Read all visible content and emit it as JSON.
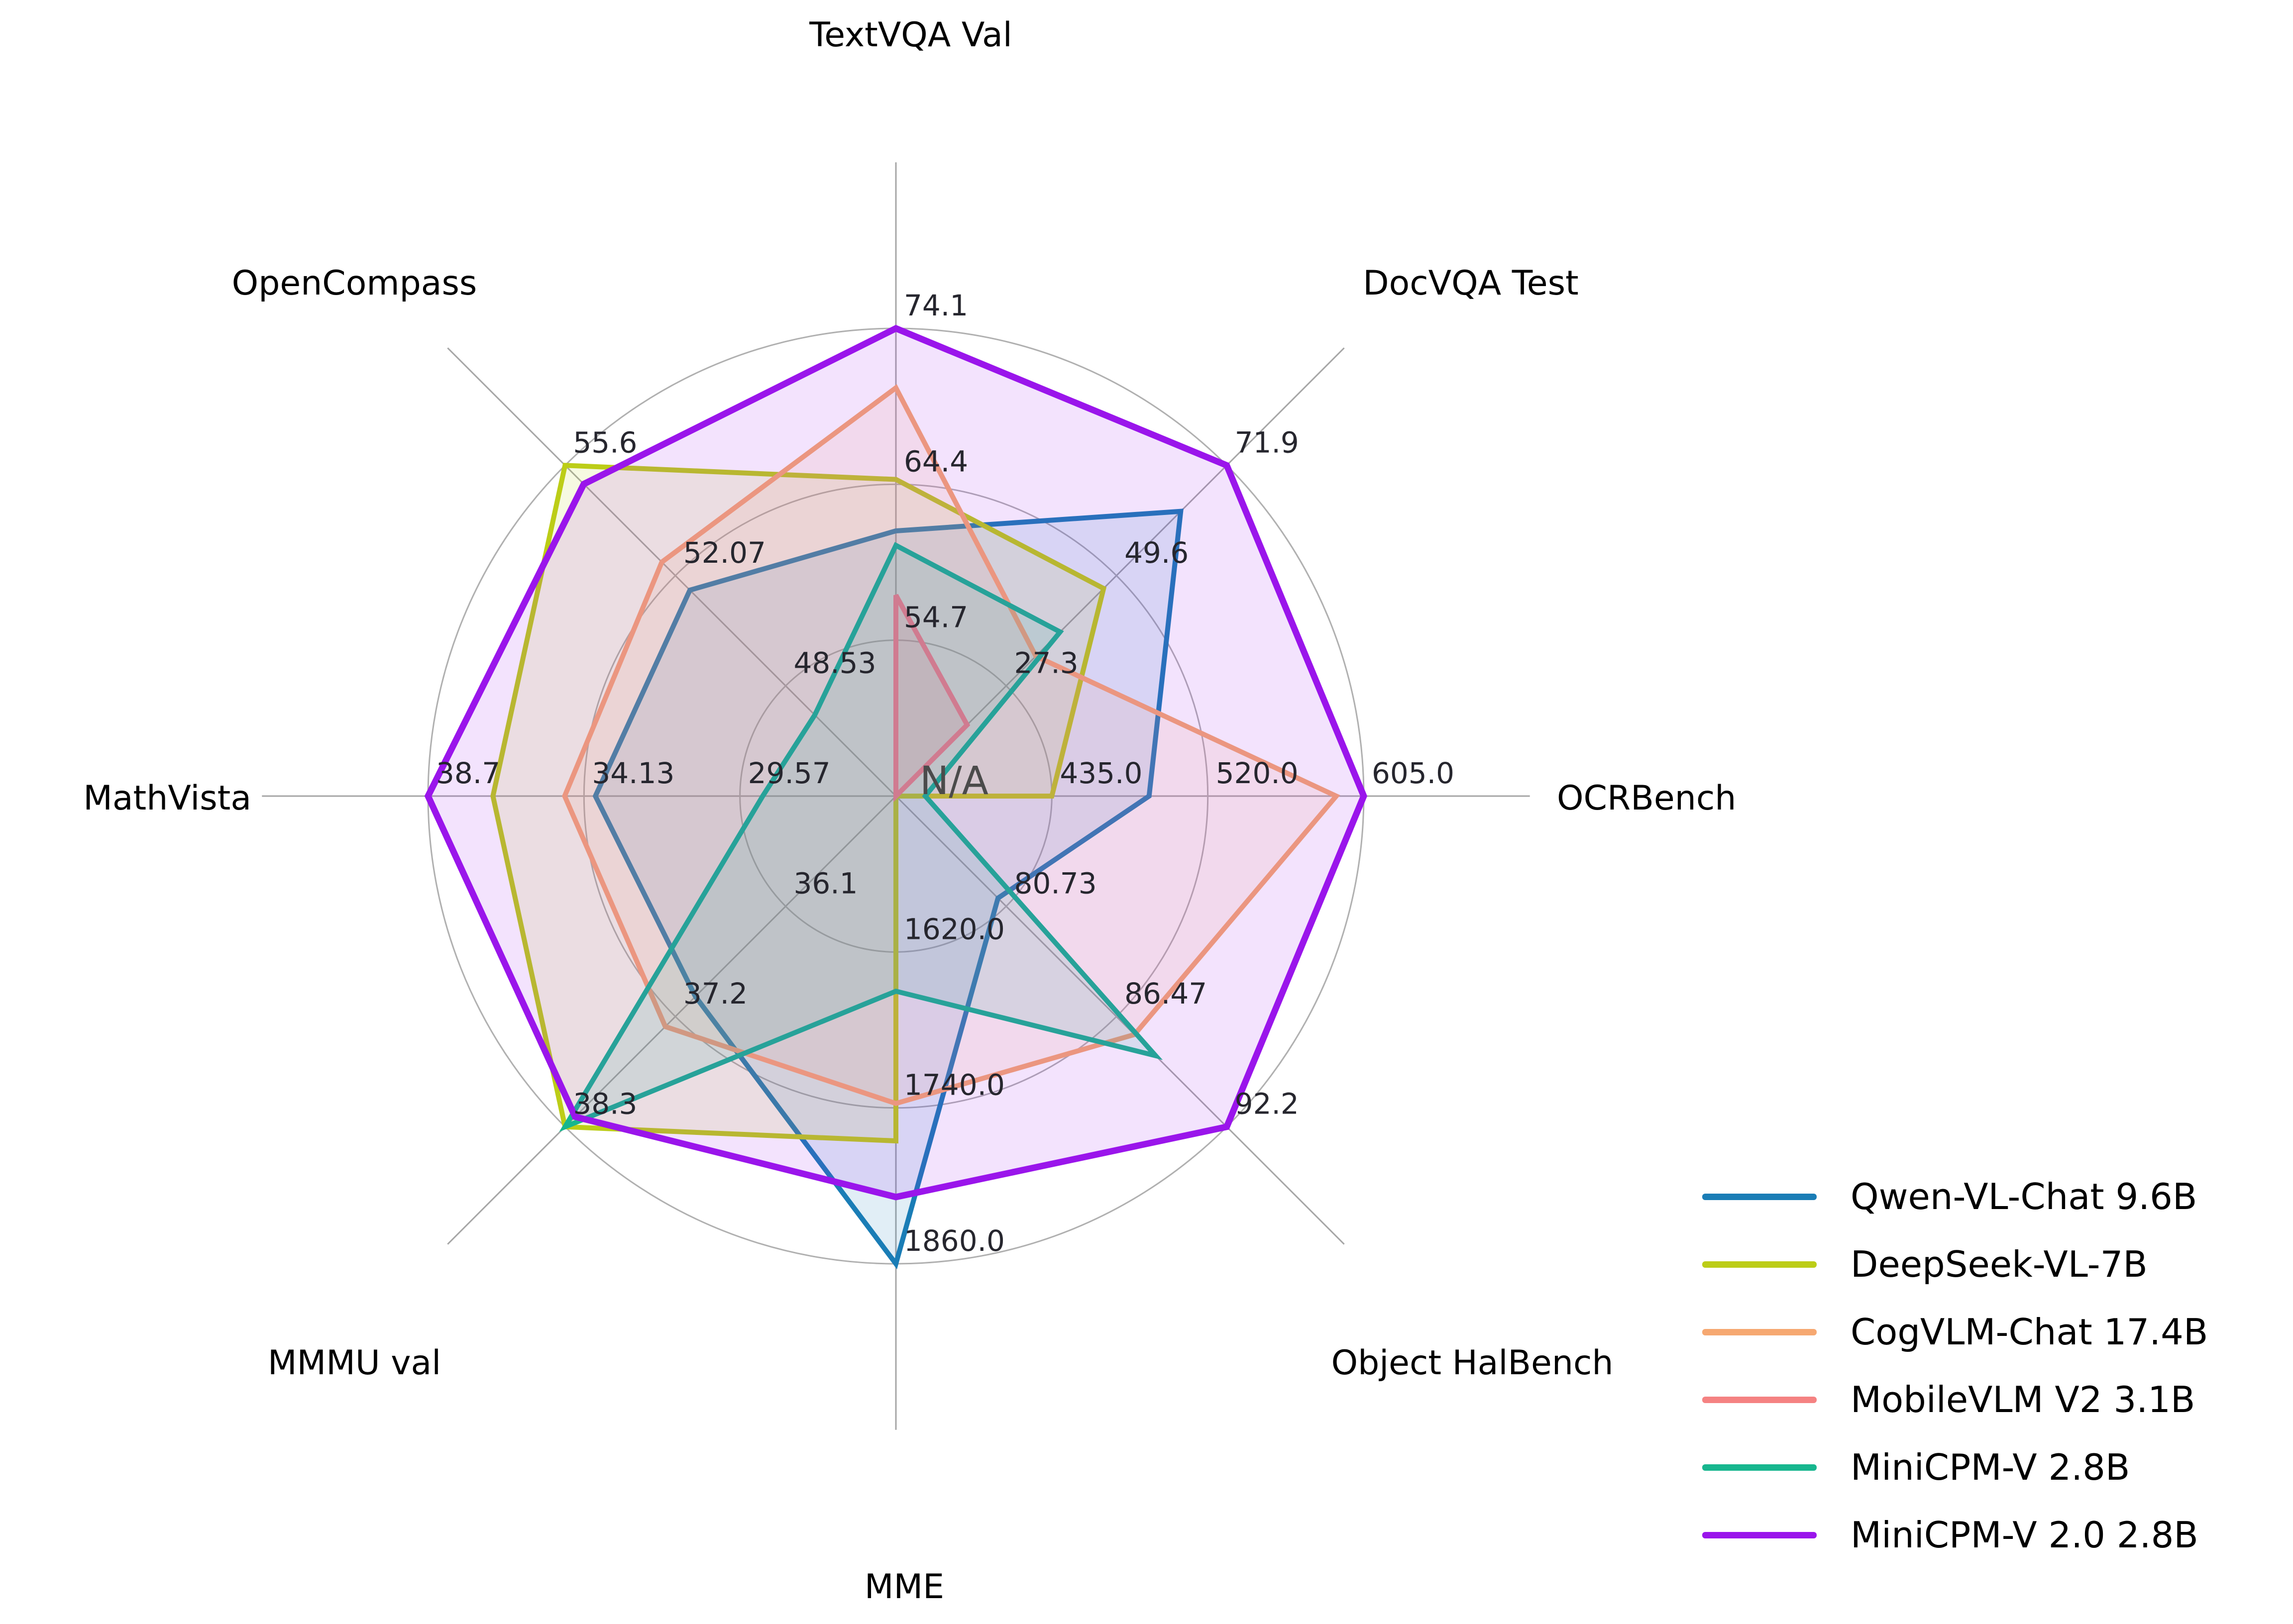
{
  "chart_data": {
    "type": "radar",
    "title": "",
    "grid": "circular, 3 rings at thirds, spokes extended past outer ring",
    "legend_position": "lower right, outside plot",
    "center_label": "N/A",
    "axes": [
      {
        "label": "TextVQA Val",
        "min": 45.0,
        "max": 74.1,
        "ticks": [
          "54.7",
          "64.4",
          "74.1"
        ]
      },
      {
        "label": "DocVQA Test",
        "min": 5.0,
        "max": 71.9,
        "ticks": [
          "27.3",
          "49.6",
          "71.9"
        ]
      },
      {
        "label": "OCRBench",
        "min": 350.0,
        "max": 605.0,
        "ticks": [
          "435.0",
          "520.0",
          "605.0"
        ]
      },
      {
        "label": "Object HalBench",
        "min": 74.99,
        "max": 92.2,
        "ticks": [
          "80.73",
          "86.47",
          "92.2"
        ]
      },
      {
        "label": "MME",
        "min": 1500.0,
        "max": 1860.0,
        "ticks": [
          "1620.0",
          "1740.0",
          "1860.0"
        ]
      },
      {
        "label": "MMMU val",
        "min": 35.0,
        "max": 38.3,
        "ticks": [
          "36.1",
          "37.2",
          "38.3"
        ]
      },
      {
        "label": "MathVista",
        "min": 25.0,
        "max": 38.7,
        "ticks": [
          "29.57",
          "34.13",
          "38.7"
        ]
      },
      {
        "label": "OpenCompass",
        "min": 45.0,
        "max": 55.6,
        "ticks": [
          "48.53",
          "52.07",
          "55.6"
        ]
      }
    ],
    "series": [
      {
        "name": "Qwen-VL-Chat 9.6B",
        "color": "#1a7db6",
        "values": [
          61.5,
          62.6,
          488,
          80.3,
          1860.0,
          37.0,
          33.8,
          51.6
        ]
      },
      {
        "name": "DeepSeek-VL-7B",
        "color": "#bccd17",
        "values": [
          64.7,
          47.0,
          435,
          null,
          1765.4,
          38.3,
          36.8,
          55.6
        ]
      },
      {
        "name": "CogVLM-Chat 17.4B",
        "color": "#f6a871",
        "values": [
          70.4,
          33.3,
          590,
          87.4,
          1736.6,
          37.3,
          34.7,
          52.5
        ]
      },
      {
        "name": "MobileVLM V2 3.1B",
        "color": "#f58282",
        "values": [
          57.5,
          19.4,
          null,
          null,
          1440.5,
          null,
          null,
          null
        ]
      },
      {
        "name": "MiniCPM-V 2.8B",
        "color": "#17b68e",
        "values": [
          60.6,
          38.2,
          366,
          88.5,
          1650.2,
          38.3,
          28.9,
          47.6
        ]
      },
      {
        "name": "MiniCPM-V 2.0 2.8B",
        "color": "#9a15eb",
        "values": [
          74.1,
          71.9,
          605,
          92.2,
          1808.6,
          38.2,
          38.7,
          55.0
        ]
      }
    ]
  }
}
